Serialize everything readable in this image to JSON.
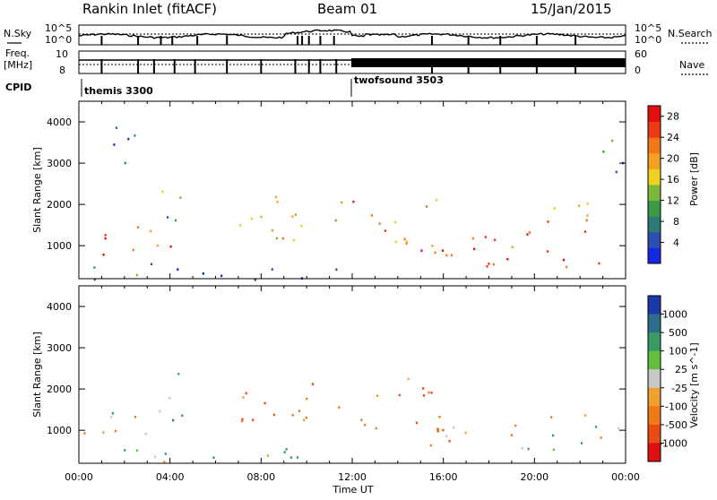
{
  "header": {
    "title": "Rankin Inlet (fitACF)",
    "beam": "Beam 01",
    "date": "15/Jan/2015"
  },
  "strips": {
    "nsky_label": "N.Sky",
    "nsearch_label": "N.Search",
    "nsky_ticks": [
      "10^5",
      "10^0"
    ],
    "nsearch_ticks": [
      "10^5",
      "10^0"
    ],
    "freq_label_1": "Freq.",
    "freq_label_2": "[MHz]",
    "freq_ticks": [
      "10",
      "8"
    ],
    "nave_label": "Nave",
    "nave_ticks": [
      "60",
      "0"
    ],
    "cpid_label": "CPID",
    "cpid_modes": [
      {
        "name": "themis 3300",
        "start_hour": 0
      },
      {
        "name": "twofsound 3503",
        "start_hour": 12
      }
    ]
  },
  "chart_data": [
    {
      "type": "heatmap",
      "name": "power",
      "ylabel": "Slant Range [km]",
      "xlabel": "Time UT",
      "ylim": [
        200,
        4500
      ],
      "xlim_hours": [
        0,
        24
      ],
      "x_ticks": [
        "00:00",
        "04:00",
        "08:00",
        "12:00",
        "16:00",
        "20:00",
        "00:00"
      ],
      "y_ticks": [
        1000,
        2000,
        3000,
        4000
      ],
      "colorbar": {
        "label": "Power [dB]",
        "ticks": [
          4,
          8,
          12,
          16,
          20,
          24,
          28
        ],
        "range": [
          0,
          30
        ],
        "colors": [
          "#1428e0",
          "#2a4fb0",
          "#2e7a74",
          "#3c9a46",
          "#7db83a",
          "#f0d020",
          "#f5a020",
          "#f07818",
          "#ee3a12",
          "#e61010"
        ]
      },
      "echo_regions": [
        {
          "t0": 0.2,
          "t1": 4.2,
          "r0": 700,
          "r1": 1500,
          "power": 27
        },
        {
          "t0": 3.5,
          "t1": 4.5,
          "r0": 1200,
          "r1": 2800,
          "power": 9
        },
        {
          "t0": 6.8,
          "t1": 11.6,
          "r0": 1100,
          "r1": 2300,
          "power": 18
        },
        {
          "t0": 12.0,
          "t1": 15.8,
          "r0": 1000,
          "r1": 2300,
          "power": 22
        },
        {
          "t0": 15.0,
          "t1": 24.0,
          "r0": 500,
          "r1": 1400,
          "power": 28
        },
        {
          "t0": 19.5,
          "t1": 23.0,
          "r0": 1300,
          "r1": 2100,
          "power": 20
        },
        {
          "t0": 0.5,
          "t1": 11.5,
          "r0": 200,
          "r1": 600,
          "power": 6
        },
        {
          "t0": 1.0,
          "t1": 3.0,
          "r0": 3000,
          "r1": 4000,
          "power": 5
        },
        {
          "t0": 22.5,
          "t1": 24.0,
          "r0": 2800,
          "r1": 3800,
          "power": 7
        }
      ]
    },
    {
      "type": "heatmap",
      "name": "velocity",
      "ylabel": "Slant Range [km]",
      "xlabel": "Time UT",
      "ylim": [
        200,
        4500
      ],
      "xlim_hours": [
        0,
        24
      ],
      "x_ticks": [
        "00:00",
        "04:00",
        "08:00",
        "12:00",
        "16:00",
        "20:00",
        "00:00"
      ],
      "y_ticks": [
        1000,
        2000,
        3000,
        4000
      ],
      "colorbar": {
        "label": "Velocity [m s^-1]",
        "ticks": [
          "1000",
          "500",
          "100",
          "25",
          "-25",
          "-100",
          "-500",
          "-1000"
        ],
        "colors": [
          "#1a3aa8",
          "#2d6e8a",
          "#3a9a64",
          "#62c040",
          "#c8c8c8",
          "#f0a030",
          "#ef7a18",
          "#ea4a14",
          "#e01010"
        ]
      },
      "echo_regions": [
        {
          "t0": 0.2,
          "t1": 4.2,
          "r0": 700,
          "r1": 1500,
          "velocity": -150
        },
        {
          "t0": 3.5,
          "t1": 4.5,
          "r0": 1200,
          "r1": 2800,
          "velocity": 200
        },
        {
          "t0": 6.8,
          "t1": 11.6,
          "r0": 1100,
          "r1": 2300,
          "velocity": -250
        },
        {
          "t0": 12.0,
          "t1": 15.8,
          "r0": 1000,
          "r1": 2300,
          "velocity": -300
        },
        {
          "t0": 15.0,
          "t1": 18.5,
          "r0": 500,
          "r1": 1400,
          "velocity": -200
        },
        {
          "t0": 18.5,
          "t1": 24.0,
          "r0": 500,
          "r1": 1000,
          "velocity": 0
        },
        {
          "t0": 19.0,
          "t1": 24.0,
          "r0": 1000,
          "r1": 1400,
          "velocity": -150
        },
        {
          "t0": 0.5,
          "t1": 11.5,
          "r0": 200,
          "r1": 600,
          "velocity": 150
        }
      ]
    }
  ]
}
